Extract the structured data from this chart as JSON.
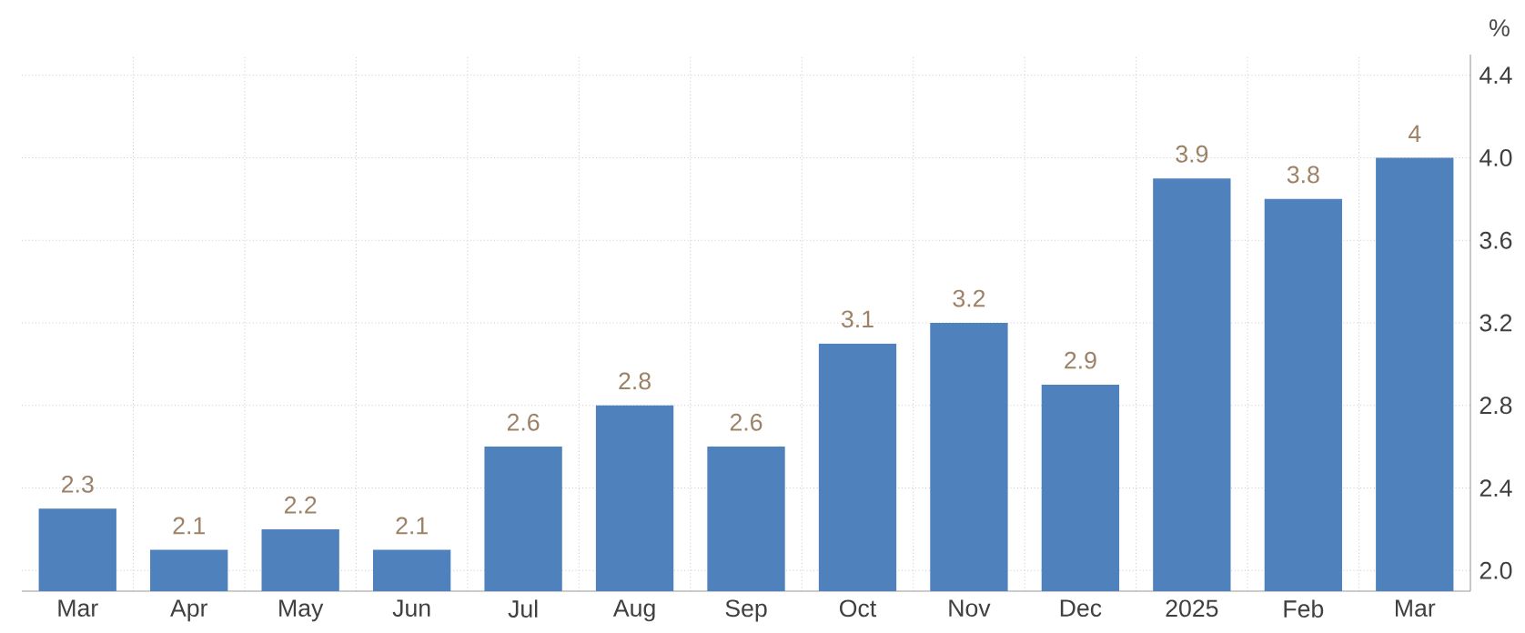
{
  "chart_data": {
    "type": "bar",
    "ylabel": "%",
    "categories": [
      "Mar",
      "Apr",
      "May",
      "Jun",
      "Jul",
      "Aug",
      "Sep",
      "Oct",
      "Nov",
      "Dec",
      "2025",
      "Feb",
      "Mar"
    ],
    "values": [
      2.3,
      2.1,
      2.2,
      2.1,
      2.6,
      2.8,
      2.6,
      3.1,
      3.2,
      2.9,
      3.9,
      3.8,
      4
    ],
    "color": "#4f81bd",
    "data_labels": true,
    "grid": true,
    "ylim": [
      1.9,
      4.5
    ],
    "yticks": [
      {
        "value": 2.0,
        "label": "2.0"
      },
      {
        "value": 2.4,
        "label": "2.4"
      },
      {
        "value": 2.8,
        "label": "2.8"
      },
      {
        "value": 3.2,
        "label": "3.2"
      },
      {
        "value": 3.6,
        "label": "3.6"
      },
      {
        "value": 4.0,
        "label": "4.0"
      },
      {
        "value": 4.4,
        "label": "4.4"
      }
    ]
  }
}
